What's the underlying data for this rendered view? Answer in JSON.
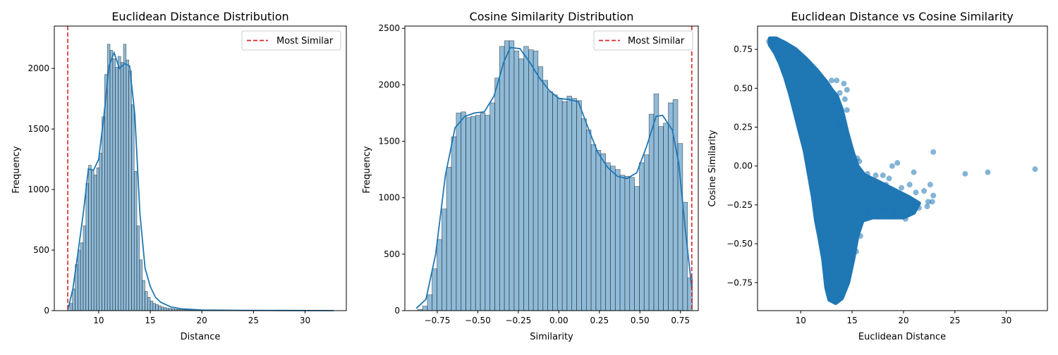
{
  "colors": {
    "bar": "#1f77b4",
    "line": "#1f77b4",
    "vline": "#d62728",
    "scatter": "#1f77b4"
  },
  "chart_data": [
    {
      "type": "bar",
      "title": "Euclidean Distance Distribution",
      "xlabel": "Distance",
      "ylabel": "Frequency",
      "xlim": [
        5.7,
        34.0
      ],
      "ylim": [
        0,
        2350
      ],
      "x_ticks": [
        10,
        15,
        20,
        25,
        30
      ],
      "y_ticks": [
        0,
        500,
        1000,
        1500,
        2000
      ],
      "bin_width": 0.26,
      "bins_x": [
        7.2,
        7.46,
        7.72,
        7.98,
        8.24,
        8.5,
        8.76,
        9.02,
        9.28,
        9.54,
        9.8,
        10.06,
        10.32,
        10.58,
        10.84,
        11.1,
        11.36,
        11.62,
        11.88,
        12.14,
        12.4,
        12.66,
        12.92,
        13.18,
        13.44,
        13.7,
        13.96,
        14.22,
        14.48,
        14.74,
        15.0,
        15.26,
        15.52,
        15.78,
        16.04,
        16.3,
        16.56,
        16.82,
        17.08,
        17.34,
        17.6,
        17.86,
        18.12,
        18.38,
        18.64,
        18.9,
        19.16,
        19.42,
        19.68,
        19.94
      ],
      "values": [
        60,
        180,
        380,
        500,
        560,
        700,
        1050,
        1200,
        1160,
        1120,
        1180,
        1300,
        1600,
        1950,
        2200,
        2150,
        2080,
        2010,
        2100,
        2050,
        2200,
        2070,
        1980,
        1700,
        1150,
        700,
        420,
        250,
        160,
        110,
        80,
        60,
        50,
        40,
        30,
        25,
        20,
        18,
        15,
        12,
        10,
        9,
        8,
        7,
        6,
        5,
        5,
        4,
        3,
        3
      ],
      "kde": {
        "x": [
          7.0,
          7.5,
          8.0,
          8.5,
          9.0,
          9.5,
          10.0,
          10.5,
          11.0,
          11.5,
          12.0,
          12.5,
          13.0,
          13.5,
          14.0,
          14.5,
          15.0,
          15.5,
          16.0,
          17.0,
          18.0,
          20.0,
          24.0,
          28.0,
          32.8
        ],
        "y": [
          0,
          180,
          480,
          800,
          1170,
          1160,
          1250,
          1600,
          2020,
          2130,
          2000,
          2040,
          2020,
          1620,
          800,
          350,
          200,
          110,
          70,
          30,
          15,
          5,
          2,
          1,
          0
        ]
      },
      "reference_line": {
        "label": "Most Similar",
        "x": 7.0
      },
      "legend": "top-right"
    },
    {
      "type": "bar",
      "title": "Cosine Similarity Distribution",
      "xlabel": "Similarity",
      "ylabel": "Frequency",
      "xlim": [
        -0.95,
        0.86
      ],
      "ylim": [
        0,
        2520
      ],
      "x_ticks": [
        -0.75,
        -0.5,
        -0.25,
        0.0,
        0.25,
        0.5,
        0.75
      ],
      "y_ticks": [
        0,
        500,
        1000,
        1500,
        2000,
        2500
      ],
      "bin_width": 0.0297,
      "bins_x": [
        -0.871,
        -0.841,
        -0.811,
        -0.782,
        -0.752,
        -0.722,
        -0.693,
        -0.663,
        -0.633,
        -0.603,
        -0.574,
        -0.544,
        -0.514,
        -0.484,
        -0.455,
        -0.425,
        -0.395,
        -0.366,
        -0.336,
        -0.306,
        -0.276,
        -0.247,
        -0.217,
        -0.187,
        -0.158,
        -0.128,
        -0.098,
        -0.068,
        -0.039,
        -0.009,
        0.021,
        0.05,
        0.08,
        0.11,
        0.14,
        0.169,
        0.199,
        0.229,
        0.259,
        0.288,
        0.318,
        0.348,
        0.377,
        0.407,
        0.437,
        0.467,
        0.496,
        0.526,
        0.556,
        0.586,
        0.615,
        0.645,
        0.675,
        0.704,
        0.734,
        0.764,
        0.794
      ],
      "values": [
        10,
        40,
        140,
        370,
        630,
        900,
        1270,
        1540,
        1750,
        1760,
        1710,
        1720,
        1730,
        1750,
        1730,
        1840,
        2060,
        2340,
        2390,
        2390,
        2300,
        2230,
        2340,
        2310,
        2300,
        2160,
        2040,
        1940,
        1910,
        1880,
        1850,
        1900,
        1880,
        1860,
        1700,
        1600,
        1470,
        1420,
        1390,
        1310,
        1280,
        1250,
        1200,
        1190,
        1180,
        1100,
        1310,
        1380,
        1740,
        1920,
        1630,
        1660,
        1840,
        1870,
        1480,
        960,
        290
      ],
      "kde": {
        "x": [
          -0.88,
          -0.82,
          -0.76,
          -0.7,
          -0.64,
          -0.58,
          -0.52,
          -0.46,
          -0.4,
          -0.34,
          -0.3,
          -0.24,
          -0.18,
          -0.12,
          -0.06,
          0.0,
          0.06,
          0.12,
          0.18,
          0.24,
          0.3,
          0.36,
          0.42,
          0.48,
          0.54,
          0.6,
          0.64,
          0.7,
          0.74,
          0.78,
          0.82
        ],
        "y": [
          20,
          100,
          500,
          1200,
          1620,
          1720,
          1750,
          1760,
          1900,
          2200,
          2330,
          2320,
          2200,
          2060,
          1950,
          1880,
          1870,
          1850,
          1620,
          1400,
          1270,
          1190,
          1170,
          1220,
          1450,
          1720,
          1730,
          1600,
          1300,
          720,
          200
        ]
      },
      "reference_line": {
        "label": "Most Similar",
        "x": 0.82
      },
      "legend": "top-right"
    },
    {
      "type": "scatter",
      "title": "Euclidean Distance vs Cosine Similarity",
      "xlabel": "Euclidean Distance",
      "ylabel": "Cosine Similarity",
      "xlim": [
        5.8,
        34.0
      ],
      "ylim": [
        -0.93,
        0.9
      ],
      "x_ticks": [
        10,
        15,
        20,
        25,
        30
      ],
      "y_ticks": [
        -0.75,
        -0.5,
        -0.25,
        0.0,
        0.25,
        0.5,
        0.75
      ],
      "y_tick_labels": [
        "−0.75",
        "−0.50",
        "−0.25",
        "0.00",
        "0.25",
        "0.50",
        "0.75"
      ],
      "main_cloud_polygon": [
        [
          7.0,
          0.82
        ],
        [
          7.6,
          0.82
        ],
        [
          8.5,
          0.79
        ],
        [
          9.5,
          0.75
        ],
        [
          10.5,
          0.69
        ],
        [
          11.5,
          0.62
        ],
        [
          12.5,
          0.54
        ],
        [
          13.0,
          0.49
        ],
        [
          13.5,
          0.45
        ],
        [
          14.0,
          0.36
        ],
        [
          14.5,
          0.22
        ],
        [
          15.0,
          0.1
        ],
        [
          15.5,
          0.0
        ],
        [
          16.2,
          -0.06
        ],
        [
          17.5,
          -0.1
        ],
        [
          19.0,
          -0.15
        ],
        [
          20.5,
          -0.2
        ],
        [
          21.5,
          -0.24
        ],
        [
          21.0,
          -0.3
        ],
        [
          20.0,
          -0.33
        ],
        [
          18.5,
          -0.33
        ],
        [
          17.0,
          -0.33
        ],
        [
          16.0,
          -0.35
        ],
        [
          15.5,
          -0.45
        ],
        [
          15.1,
          -0.6
        ],
        [
          14.6,
          -0.75
        ],
        [
          14.0,
          -0.85
        ],
        [
          13.4,
          -0.88
        ],
        [
          12.8,
          -0.86
        ],
        [
          12.5,
          -0.78
        ],
        [
          12.2,
          -0.6
        ],
        [
          11.8,
          -0.45
        ],
        [
          11.5,
          -0.35
        ],
        [
          11.2,
          -0.2
        ],
        [
          10.8,
          -0.05
        ],
        [
          10.4,
          0.1
        ],
        [
          10.0,
          0.2
        ],
        [
          9.5,
          0.33
        ],
        [
          9.0,
          0.46
        ],
        [
          8.5,
          0.57
        ],
        [
          8.0,
          0.66
        ],
        [
          7.5,
          0.73
        ],
        [
          7.0,
          0.78
        ]
      ],
      "points": [
        [
          6.9,
          0.8
        ],
        [
          7.1,
          0.81
        ],
        [
          7.3,
          0.79
        ],
        [
          7.5,
          0.8
        ],
        [
          7.8,
          0.78
        ],
        [
          8.2,
          0.76
        ],
        [
          13.0,
          0.55
        ],
        [
          13.5,
          0.55
        ],
        [
          14.2,
          0.53
        ],
        [
          14.5,
          0.49
        ],
        [
          13.8,
          0.47
        ],
        [
          14.3,
          0.43
        ],
        [
          13.2,
          0.41
        ],
        [
          13.9,
          0.37
        ],
        [
          14.5,
          0.36
        ],
        [
          13.6,
          0.28
        ],
        [
          14.0,
          0.26
        ],
        [
          14.8,
          0.12
        ],
        [
          14.6,
          0.1
        ],
        [
          15.5,
          0.05
        ],
        [
          15.7,
          0.03
        ],
        [
          16.5,
          -0.05
        ],
        [
          17.3,
          -0.06
        ],
        [
          18.0,
          -0.06
        ],
        [
          18.6,
          -0.08
        ],
        [
          19.4,
          0.02
        ],
        [
          18.3,
          -0.12
        ],
        [
          19.8,
          -0.14
        ],
        [
          20.6,
          -0.12
        ],
        [
          21.2,
          -0.17
        ],
        [
          21.0,
          -0.04
        ],
        [
          22.0,
          -0.16
        ],
        [
          22.6,
          -0.12
        ],
        [
          22.9,
          -0.19
        ],
        [
          22.4,
          -0.23
        ],
        [
          22.3,
          -0.26
        ],
        [
          22.8,
          -0.23
        ],
        [
          21.0,
          -0.23
        ],
        [
          21.5,
          -0.27
        ],
        [
          20.2,
          -0.34
        ],
        [
          19.2,
          -0.31
        ],
        [
          18.9,
          0.0
        ],
        [
          22.9,
          0.09
        ],
        [
          26.0,
          -0.05
        ],
        [
          28.2,
          -0.04
        ],
        [
          32.8,
          -0.02
        ],
        [
          16.5,
          -0.3
        ],
        [
          17.2,
          -0.32
        ],
        [
          18.0,
          -0.28
        ],
        [
          15.8,
          -0.45
        ],
        [
          15.4,
          -0.55
        ]
      ]
    }
  ]
}
